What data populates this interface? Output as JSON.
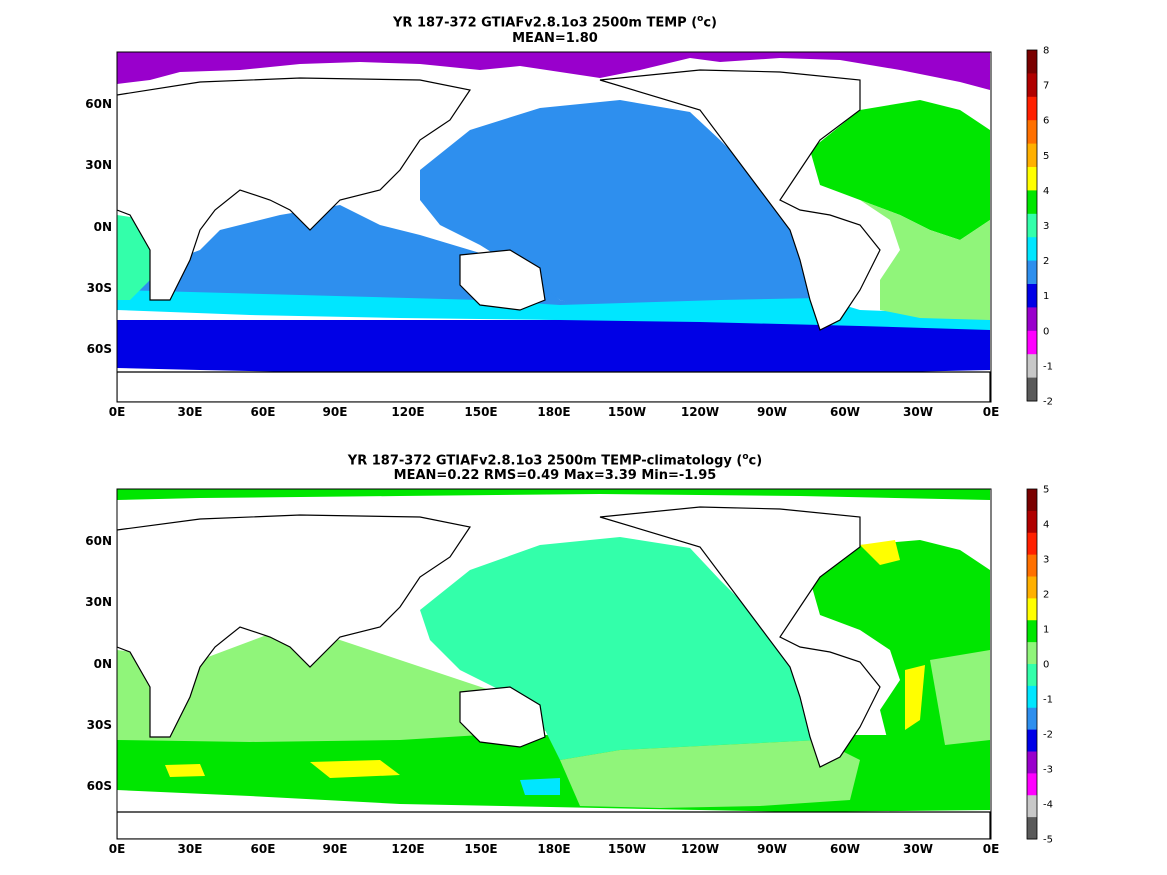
{
  "panels": [
    {
      "title_prefix": "YR 187-372 GTIAFv2.8.1o3 2500m TEMP (",
      "title_unit_sup": "o",
      "title_suffix": "c)",
      "subtitle": "MEAN=1.80",
      "x_ticks": [
        "0E",
        "30E",
        "60E",
        "90E",
        "120E",
        "150E",
        "180E",
        "150W",
        "120W",
        "90W",
        "60W",
        "30W",
        "0E"
      ],
      "y_ticks": [
        "60N",
        "30N",
        "0N",
        "30S",
        "60S"
      ],
      "colorbar": {
        "labels": [
          "-2",
          "-1",
          "0",
          "1",
          "2",
          "3",
          "4",
          "5",
          "6",
          "7",
          "8"
        ],
        "colors": [
          "#5a5a5a",
          "#c8c8c8",
          "#ff00ff",
          "#9900cc",
          "#0000e6",
          "#2e8fee",
          "#00e6ff",
          "#33ffaa",
          "#00e600",
          "#ffff00",
          "#ffb000",
          "#ff7000",
          "#ff2000",
          "#b00000",
          "#7a0000"
        ]
      }
    },
    {
      "title_prefix": "YR 187-372 GTIAFv2.8.1o3 2500m TEMP-climatology (",
      "title_unit_sup": "o",
      "title_suffix": "c)",
      "subtitle": "MEAN=0.22   RMS=0.49   Max=3.39   Min=-1.95",
      "x_ticks": [
        "0E",
        "30E",
        "60E",
        "90E",
        "120E",
        "150E",
        "180E",
        "150W",
        "120W",
        "90W",
        "60W",
        "30W",
        "0E"
      ],
      "y_ticks": [
        "60N",
        "30N",
        "0N",
        "30S",
        "60S"
      ],
      "colorbar": {
        "labels": [
          "-5",
          "-4",
          "-3",
          "-2",
          "-1",
          "0",
          "1",
          "2",
          "3",
          "4",
          "5"
        ],
        "colors": [
          "#5a5a5a",
          "#c8c8c8",
          "#ff00ff",
          "#9900cc",
          "#0000e6",
          "#2e8fee",
          "#00e6ff",
          "#33ffaa",
          "#90f57a",
          "#00e600",
          "#ffff00",
          "#ffb000",
          "#ff7000",
          "#ff2000",
          "#b00000",
          "#7a0000"
        ]
      }
    }
  ]
}
